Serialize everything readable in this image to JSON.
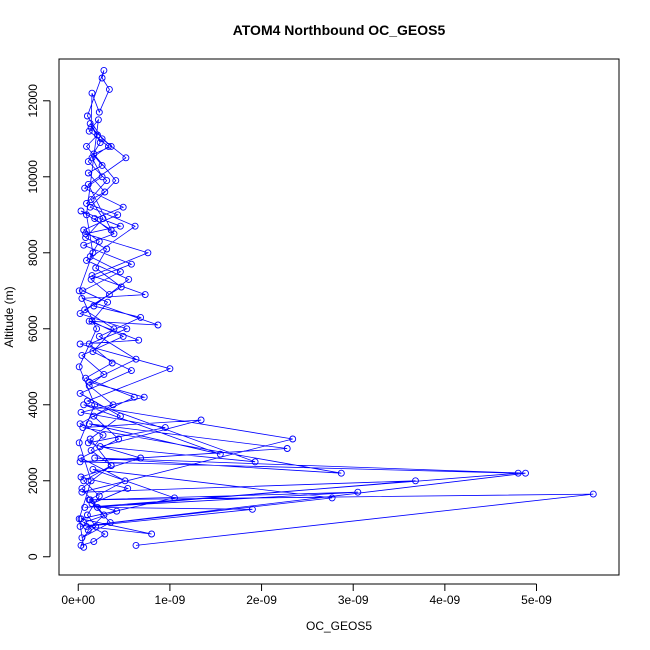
{
  "chart_data": {
    "type": "scatter",
    "title": "ATOM4 Northbound OC_GEOS5",
    "xlabel": "OC_GEOS5",
    "ylabel": "Altitude (m)",
    "xlim": [
      -2.1e-10,
      5.9e-09
    ],
    "ylim": [
      -480,
      13100
    ],
    "x_ticks": [
      0,
      1e-09,
      2e-09,
      3e-09,
      4e-09,
      5e-09
    ],
    "x_tick_labels": [
      "0e+00",
      "1e-09",
      "2e-09",
      "3e-09",
      "4e-09",
      "5e-09"
    ],
    "y_ticks": [
      0,
      2000,
      4000,
      6000,
      8000,
      10000,
      12000
    ],
    "y_tick_labels": [
      "0",
      "2000",
      "4000",
      "6000",
      "8000",
      "10000",
      "12000"
    ],
    "grid": false,
    "legend": "none",
    "marker": "open-circle",
    "line_color": "#0000ff",
    "series": [
      {
        "points": [
          [
            6.3e-10,
            300
          ],
          [
            5.62e-09,
            1650
          ],
          [
            1.3e-10,
            1500
          ],
          [
            3.05e-09,
            1700
          ],
          [
            7e-11,
            1300
          ],
          [
            4.8e-09,
            2200
          ],
          [
            2e-11,
            2500
          ],
          [
            2.28e-09,
            2850
          ],
          [
            1.2e-10,
            3500
          ],
          [
            1.55e-09,
            2700
          ],
          [
            6e-11,
            4000
          ],
          [
            2.34e-09,
            3100
          ],
          [
            4e-11,
            1700
          ],
          [
            3.68e-09,
            2000
          ],
          [
            2.1e-10,
            1300
          ],
          [
            1.9e-09,
            1250
          ],
          [
            9e-11,
            800
          ],
          [
            8e-10,
            600
          ],
          [
            3e-11,
            1000
          ],
          [
            1.05e-09,
            1550
          ],
          [
            1.6e-10,
            2300
          ],
          [
            2.77e-09,
            1550
          ],
          [
            2e-11,
            800
          ],
          [
            4.88e-09,
            2200
          ],
          [
            1.8e-10,
            2600
          ],
          [
            2.87e-09,
            2200
          ],
          [
            5e-11,
            3400
          ],
          [
            1.34e-09,
            3600
          ],
          [
            2.4e-10,
            2900
          ],
          [
            1.93e-09,
            2500
          ],
          [
            1e-10,
            4100
          ],
          [
            1e-09,
            4950
          ],
          [
            2e-11,
            5600
          ],
          [
            6.6e-10,
            5700
          ],
          [
            1.2e-10,
            6200
          ],
          [
            8.7e-10,
            6100
          ],
          [
            4e-11,
            6800
          ],
          [
            7.3e-10,
            6900
          ],
          [
            1.5e-10,
            7400
          ],
          [
            7.6e-10,
            8000
          ],
          [
            8e-11,
            8500
          ],
          [
            4.6e-10,
            8700
          ],
          [
            3e-11,
            9100
          ],
          [
            3.6e-10,
            8600
          ],
          [
            1.1e-10,
            9800
          ],
          [
            5.2e-10,
            10500
          ],
          [
            2.6e-10,
            11000
          ],
          [
            1e-10,
            11600
          ],
          [
            2.8e-10,
            12800
          ],
          [
            2.6e-10,
            12600
          ],
          [
            3.4e-10,
            12300
          ],
          [
            2.3e-10,
            11700
          ],
          [
            1.5e-10,
            12200
          ],
          [
            1.4e-10,
            11300
          ],
          [
            3.6e-10,
            10800
          ],
          [
            1.7e-10,
            10600
          ],
          [
            4.1e-10,
            9900
          ],
          [
            1.3e-10,
            9200
          ],
          [
            6.2e-10,
            8700
          ],
          [
            9e-11,
            7800
          ],
          [
            5.5e-10,
            7300
          ],
          [
            1.7e-10,
            6600
          ],
          [
            6.8e-10,
            6300
          ],
          [
            2.3e-10,
            5800
          ],
          [
            6.3e-10,
            5200
          ],
          [
            1.2e-10,
            4600
          ],
          [
            7.2e-10,
            4200
          ],
          [
            3e-11,
            3800
          ],
          [
            9.5e-10,
            3400
          ],
          [
            1.1e-10,
            3000
          ],
          [
            6.8e-10,
            2600
          ],
          [
            3e-11,
            2100
          ],
          [
            5.4e-10,
            1800
          ],
          [
            1.5e-10,
            1400
          ],
          [
            4.2e-10,
            1200
          ],
          [
            6e-11,
            900
          ],
          [
            2.9e-10,
            600
          ],
          [
            1.7e-10,
            400
          ],
          [
            3e-11,
            300
          ],
          [
            1.1e-10,
            700
          ],
          [
            2.8e-10,
            1100
          ],
          [
            4e-11,
            1800
          ],
          [
            3.6e-10,
            2400
          ],
          [
            1.3e-10,
            3100
          ],
          [
            4.6e-10,
            3700
          ],
          [
            2e-11,
            4300
          ],
          [
            5.8e-10,
            4900
          ],
          [
            1.6e-10,
            5400
          ],
          [
            3.9e-10,
            6000
          ],
          [
            7e-11,
            6500
          ],
          [
            4.7e-10,
            7100
          ],
          [
            1.9e-10,
            7600
          ],
          [
            3.1e-10,
            8100
          ],
          [
            8e-11,
            8400
          ],
          [
            2.7e-10,
            8900
          ],
          [
            1.4e-10,
            9400
          ],
          [
            2.9e-10,
            9600
          ],
          [
            1.1e-10,
            10100
          ],
          [
            2.6e-10,
            10300
          ],
          [
            9e-11,
            10800
          ],
          [
            2.1e-10,
            11100
          ],
          [
            1.3e-10,
            11400
          ],
          [
            2.4e-10,
            10900
          ],
          [
            1.1e-10,
            10400
          ],
          [
            3.1e-10,
            9900
          ],
          [
            9e-11,
            9300
          ],
          [
            4.3e-10,
            9000
          ],
          [
            6e-11,
            8600
          ],
          [
            2.3e-10,
            8300
          ],
          [
            1.3e-10,
            7900
          ],
          [
            4.6e-10,
            7500
          ],
          [
            5e-11,
            7000
          ],
          [
            3.2e-10,
            6700
          ],
          [
            1.5e-10,
            6200
          ],
          [
            4.9e-10,
            5800
          ],
          [
            4e-11,
            5300
          ],
          [
            2.8e-10,
            4800
          ],
          [
            1.2e-10,
            4500
          ],
          [
            3.8e-10,
            4000
          ],
          [
            2e-11,
            3500
          ],
          [
            2.7e-10,
            3200
          ],
          [
            1.4e-10,
            2800
          ],
          [
            3.6e-10,
            2400
          ],
          [
            6e-11,
            2000
          ],
          [
            2.3e-10,
            1600
          ],
          [
            1e-10,
            1100
          ],
          [
            1.9e-10,
            800
          ],
          [
            4e-11,
            500
          ],
          [
            3.5e-10,
            900
          ],
          [
            1.2e-10,
            1500
          ],
          [
            5.1e-10,
            2000
          ],
          [
            3e-11,
            2600
          ],
          [
            4.4e-10,
            3100
          ],
          [
            1.7e-10,
            3700
          ],
          [
            6.1e-10,
            4200
          ],
          [
            8e-11,
            4700
          ],
          [
            3.7e-10,
            5100
          ],
          [
            1.2e-10,
            5600
          ],
          [
            5.3e-10,
            6000
          ],
          [
            2e-11,
            6400
          ],
          [
            3.4e-10,
            6900
          ],
          [
            1.4e-10,
            7300
          ],
          [
            5.8e-10,
            7700
          ],
          [
            6e-11,
            8200
          ],
          [
            3.9e-10,
            8500
          ],
          [
            1.8e-10,
            8900
          ],
          [
            4.9e-10,
            9200
          ],
          [
            7e-11,
            9700
          ],
          [
            2.6e-10,
            10000
          ],
          [
            1.5e-10,
            10500
          ],
          [
            3.3e-10,
            10800
          ],
          [
            1.2e-10,
            11200
          ],
          [
            2.2e-10,
            11500
          ],
          [
            9e-11,
            9000
          ],
          [
            1.6e-10,
            8000
          ],
          [
            1e-11,
            7000
          ],
          [
            2e-10,
            6000
          ],
          [
            1e-11,
            5000
          ],
          [
            1.8e-10,
            4000
          ],
          [
            1e-11,
            3000
          ],
          [
            1.4e-10,
            2000
          ],
          [
            1e-11,
            1000
          ],
          [
            6e-11,
            250
          ]
        ]
      }
    ]
  }
}
